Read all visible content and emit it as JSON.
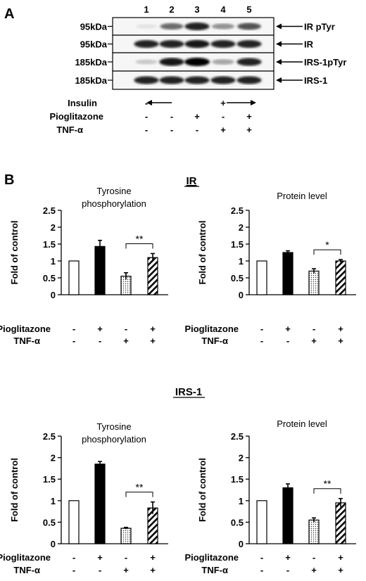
{
  "panel_a": {
    "letter": "A",
    "lane_numbers": [
      "1",
      "2",
      "3",
      "4",
      "5"
    ],
    "blots": [
      {
        "mw": "95kDa",
        "label": "IR pTyr",
        "intensity": [
          0.04,
          0.55,
          0.85,
          0.38,
          0.65
        ]
      },
      {
        "mw": "95kDa",
        "label": "IR",
        "intensity": [
          0.85,
          0.85,
          0.9,
          0.85,
          0.85
        ]
      },
      {
        "mw": "185kDa",
        "label": "IRS-1pTyr",
        "intensity": [
          0.15,
          0.9,
          1.0,
          0.3,
          0.85
        ]
      },
      {
        "mw": "185kDa",
        "label": "IRS-1",
        "intensity": [
          0.85,
          0.85,
          0.85,
          0.85,
          0.85
        ]
      }
    ],
    "conditions": [
      {
        "label": "Insulin",
        "marks": [
          "-",
          "←",
          "",
          "+",
          "→"
        ]
      },
      {
        "label": "Pioglitazone",
        "marks": [
          "-",
          "-",
          "+",
          "-",
          "+"
        ]
      },
      {
        "label": "TNF-α",
        "marks": [
          "-",
          "-",
          "-",
          "+",
          "+"
        ]
      }
    ]
  },
  "panel_b": {
    "letter": "B",
    "groups": [
      {
        "title": "IR"
      },
      {
        "title": "IRS-1"
      }
    ]
  },
  "chart_data": [
    {
      "type": "bar",
      "group": "IR",
      "title": "Tyrosine phosphorylation",
      "ylabel": "Fold of  control",
      "ylim": [
        0,
        2.5
      ],
      "yticks": [
        "0",
        "0.5",
        "1",
        "1.5",
        "2",
        "2.5"
      ],
      "values": [
        1.0,
        1.43,
        0.55,
        1.1
      ],
      "errors": [
        0,
        0.18,
        0.1,
        0.12
      ],
      "fills": [
        "white",
        "black",
        "dots",
        "hatch"
      ],
      "significance": {
        "bars": [
          2,
          3
        ],
        "label": "**"
      },
      "row_labels": [
        "Pioglitazone",
        "TNF-α"
      ],
      "pioglitazone": [
        "-",
        "+",
        "-",
        "+"
      ],
      "tnf": [
        "-",
        "-",
        "+",
        "+"
      ]
    },
    {
      "type": "bar",
      "group": "IR",
      "title": "Protein level",
      "ylabel": "Fold of  control",
      "ylim": [
        0,
        2.5
      ],
      "yticks": [
        "0",
        "0.5",
        "1",
        "1.5",
        "2",
        "2.5"
      ],
      "values": [
        1.0,
        1.25,
        0.7,
        1.0
      ],
      "errors": [
        0,
        0.05,
        0.07,
        0.04
      ],
      "fills": [
        "white",
        "black",
        "dots",
        "hatch"
      ],
      "significance": {
        "bars": [
          2,
          3
        ],
        "label": "*"
      },
      "row_labels": [
        "Pioglitazone",
        "TNF-α"
      ],
      "pioglitazone": [
        "-",
        "+",
        "-",
        "+"
      ],
      "tnf": [
        "-",
        "-",
        "+",
        "+"
      ]
    },
    {
      "type": "bar",
      "group": "IRS-1",
      "title": "Tyrosine phosphorylation",
      "ylabel": "Fold of  control",
      "ylim": [
        0,
        2.5
      ],
      "yticks": [
        "0",
        "0.5",
        "1",
        "1.5",
        "2",
        "2.5"
      ],
      "values": [
        1.0,
        1.85,
        0.36,
        0.83
      ],
      "errors": [
        0,
        0.06,
        0.02,
        0.14
      ],
      "fills": [
        "white",
        "black",
        "dots",
        "hatch"
      ],
      "significance": {
        "bars": [
          2,
          3
        ],
        "label": "**"
      },
      "row_labels": [
        "Pioglitazone",
        "TNF-α"
      ],
      "pioglitazone": [
        "-",
        "+",
        "-",
        "+"
      ],
      "tnf": [
        "-",
        "-",
        "+",
        "+"
      ]
    },
    {
      "type": "bar",
      "group": "IRS-1",
      "title": "Protein level",
      "ylabel": "Fold of  control",
      "ylim": [
        0,
        2.5
      ],
      "yticks": [
        "0",
        "0.5",
        "1",
        "1.5",
        "2",
        "2.5"
      ],
      "values": [
        1.0,
        1.3,
        0.55,
        0.95
      ],
      "errors": [
        0,
        0.09,
        0.05,
        0.1
      ],
      "fills": [
        "white",
        "black",
        "dots",
        "hatch"
      ],
      "significance": {
        "bars": [
          2,
          3
        ],
        "label": "**"
      },
      "row_labels": [
        "Pioglitazone",
        "TNF-α"
      ],
      "pioglitazone": [
        "-",
        "+",
        "-",
        "+"
      ],
      "tnf": [
        "-",
        "-",
        "+",
        "+"
      ]
    }
  ]
}
